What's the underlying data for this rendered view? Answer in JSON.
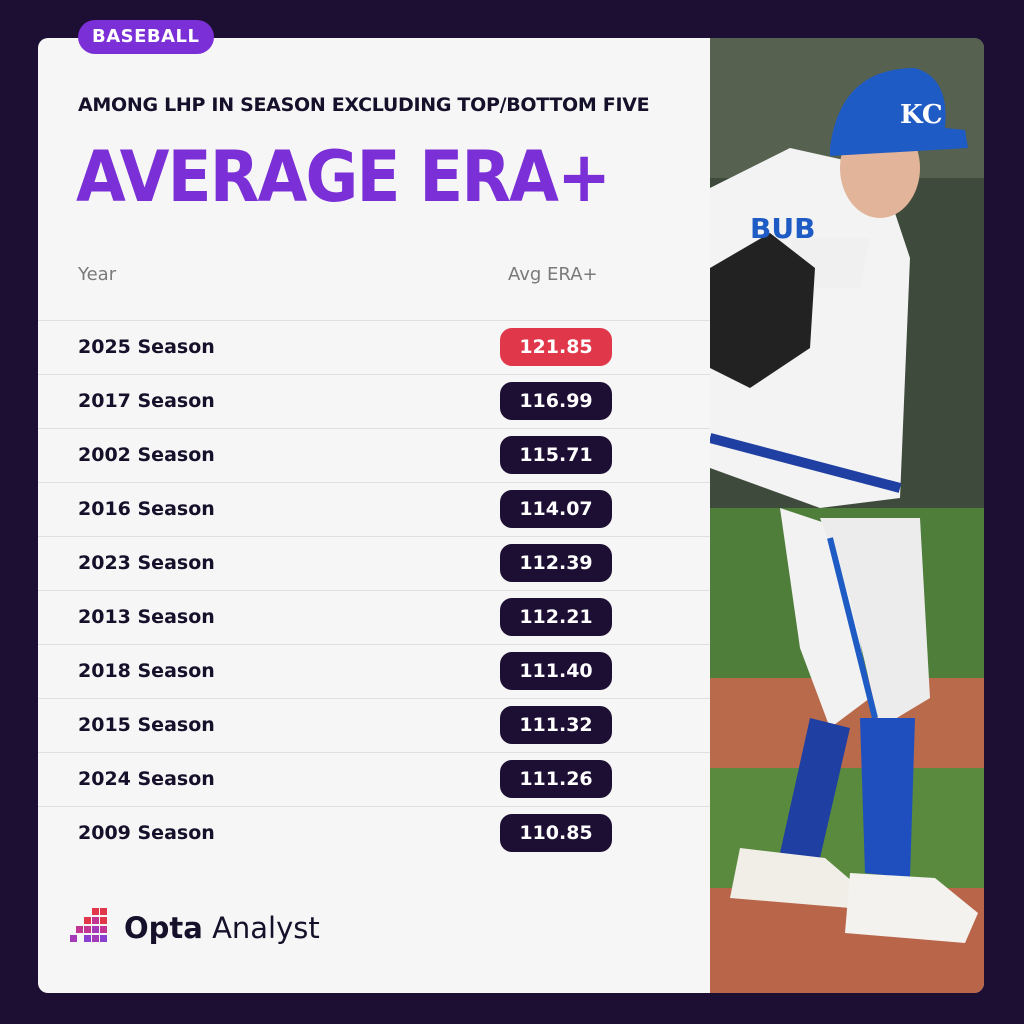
{
  "badge": "BASEBALL",
  "subtitle": "AMONG LHP IN SEASON EXCLUDING TOP/BOTTOM FIVE",
  "title": "AVERAGE ERA+",
  "chart_data": {
    "type": "table",
    "columns": [
      "Year",
      "Avg ERA+"
    ],
    "rows": [
      {
        "label": "2025 Season",
        "value": "121.85",
        "highlight": true
      },
      {
        "label": "2017 Season",
        "value": "116.99",
        "highlight": false
      },
      {
        "label": "2002 Season",
        "value": "115.71",
        "highlight": false
      },
      {
        "label": "2016 Season",
        "value": "114.07",
        "highlight": false
      },
      {
        "label": "2023 Season",
        "value": "112.39",
        "highlight": false
      },
      {
        "label": "2013 Season",
        "value": "112.21",
        "highlight": false
      },
      {
        "label": "2018 Season",
        "value": "111.40",
        "highlight": false
      },
      {
        "label": "2015 Season",
        "value": "111.32",
        "highlight": false
      },
      {
        "label": "2024 Season",
        "value": "111.26",
        "highlight": false
      },
      {
        "label": "2009 Season",
        "value": "110.85",
        "highlight": false
      }
    ]
  },
  "colors": {
    "accent": "#7b2fd6",
    "highlight": "#e0384a",
    "pill": "#1d0f33",
    "background": "#1d0f33"
  },
  "photo": {
    "cap_letters": "KC",
    "jersey_text": "BUB"
  },
  "logo": {
    "brand": "Opta",
    "product": "Analyst"
  }
}
